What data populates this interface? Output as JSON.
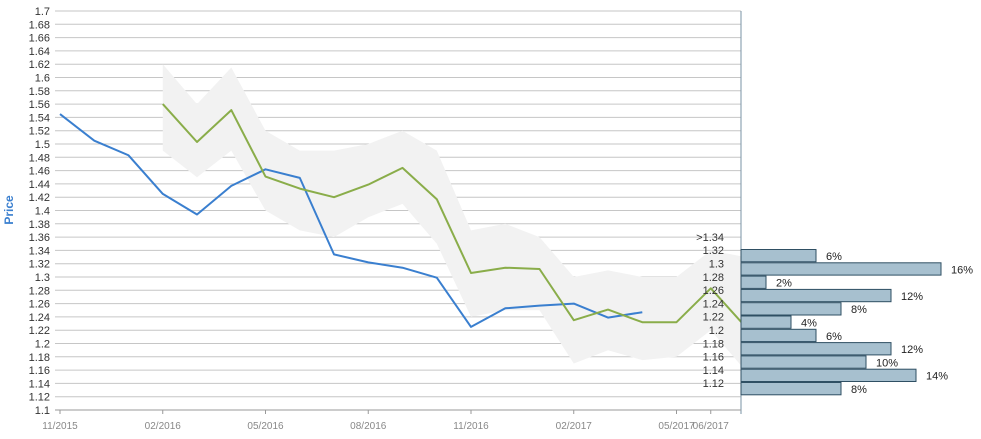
{
  "chart_data": {
    "type": "line",
    "ylabel": "Price",
    "ylim": [
      1.1,
      1.7
    ],
    "y_ticks": [
      "1.1",
      "1.12",
      "1.14",
      "1.16",
      "1.18",
      "1.2",
      "1.22",
      "1.24",
      "1.26",
      "1.28",
      "1.3",
      "1.32",
      "1.34",
      "1.36",
      "1.38",
      "1.4",
      "1.42",
      "1.44",
      "1.46",
      "1.48",
      "1.5",
      "1.52",
      "1.54",
      "1.56",
      "1.58",
      "1.6",
      "1.62",
      "1.64",
      "1.66",
      "1.68",
      "1.7"
    ],
    "x_ticks": [
      "11/2015",
      "02/2016",
      "05/2016",
      "08/2016",
      "11/2016",
      "02/2017",
      "05/2017",
      "06/2017"
    ],
    "colors": {
      "actual": "#3a7fcf",
      "forecast": "#8aad4a",
      "band": "#f2f2f2",
      "hist_bar": "#a7c0cf",
      "hist_edge": "#2f4f63",
      "ylabel": "#3a7fcf"
    },
    "series": [
      {
        "key": "actual",
        "x": [
          "11/2015",
          "12/2015",
          "01/2016",
          "02/2016",
          "03/2016",
          "04/2016",
          "05/2016",
          "06/2016",
          "07/2016",
          "08/2016",
          "09/2016",
          "10/2016",
          "11/2016",
          "12/2016",
          "01/2017",
          "02/2017",
          "03/2017",
          "04/2017"
        ],
        "values": [
          1.545,
          1.505,
          1.483,
          1.425,
          1.394,
          1.437,
          1.462,
          1.449,
          1.334,
          1.322,
          1.314,
          1.299,
          1.225,
          1.253,
          1.257,
          1.26,
          1.239,
          1.247
        ]
      },
      {
        "key": "forecast",
        "x": [
          "02/2016",
          "03/2016",
          "04/2016",
          "05/2016",
          "06/2016",
          "07/2016",
          "08/2016",
          "09/2016",
          "10/2016",
          "11/2016",
          "12/2016",
          "01/2017",
          "02/2017",
          "03/2017",
          "04/2017",
          "05/2017",
          "06/2017",
          "07/2017"
        ],
        "values": [
          1.56,
          1.503,
          1.551,
          1.451,
          1.433,
          1.42,
          1.439,
          1.464,
          1.417,
          1.306,
          1.314,
          1.312,
          1.235,
          1.251,
          1.232,
          1.232,
          1.283,
          1.226
        ],
        "band_upper": [
          1.62,
          1.56,
          1.615,
          1.52,
          1.49,
          1.49,
          1.5,
          1.52,
          1.49,
          1.37,
          1.38,
          1.36,
          1.3,
          1.31,
          1.3,
          1.3,
          1.34,
          1.33
        ],
        "band_lower": [
          1.49,
          1.45,
          1.49,
          1.4,
          1.37,
          1.36,
          1.39,
          1.41,
          1.35,
          1.24,
          1.25,
          1.25,
          1.17,
          1.19,
          1.175,
          1.18,
          1.22,
          1.16
        ]
      }
    ],
    "histogram": {
      "bins": [
        {
          "label": ">1.34",
          "percent": 6
        },
        {
          "label": "1.32",
          "percent": 16
        },
        {
          "label": "1.3",
          "percent": 2
        },
        {
          "label": "1.28",
          "percent": 12
        },
        {
          "label": "1.26",
          "percent": 8
        },
        {
          "label": "1.24",
          "percent": 4
        },
        {
          "label": "1.22",
          "percent": 6
        },
        {
          "label": "1.2",
          "percent": 12
        },
        {
          "label": "1.18",
          "percent": 10
        },
        {
          "label": "1.16",
          "percent": 14
        },
        {
          "label": "1.14",
          "percent": 8
        },
        {
          "label": "1.12",
          "percent": 0
        }
      ]
    }
  }
}
